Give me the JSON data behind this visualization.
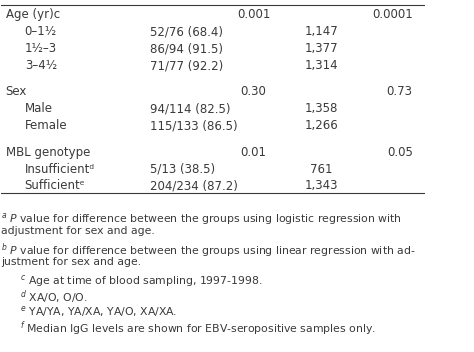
{
  "rows": [
    {
      "label": "Age (yr)ᴄ",
      "indent": 0,
      "col2": "",
      "col3": "0.001",
      "col4": "",
      "col5": "0.0001",
      "superscript_col1": "c"
    },
    {
      "label": "0–1½",
      "indent": 1,
      "col2": "52/76 (68.4)",
      "col3": "",
      "col4": "1,147",
      "col5": ""
    },
    {
      "label": "1½–3",
      "indent": 1,
      "col2": "86/94 (91.5)",
      "col3": "",
      "col4": "1,377",
      "col5": ""
    },
    {
      "label": "3–4½",
      "indent": 1,
      "col2": "71/77 (92.2)",
      "col3": "",
      "col4": "1,314",
      "col5": ""
    },
    {
      "label": "",
      "indent": 0,
      "col2": "",
      "col3": "",
      "col4": "",
      "col5": ""
    },
    {
      "label": "Sex",
      "indent": 0,
      "col2": "",
      "col3": "0.30",
      "col4": "",
      "col5": "0.73",
      "superscript_col1": ""
    },
    {
      "label": "Male",
      "indent": 1,
      "col2": "94/114 (82.5)",
      "col3": "",
      "col4": "1,358",
      "col5": ""
    },
    {
      "label": "Female",
      "indent": 1,
      "col2": "115/133 (86.5)",
      "col3": "",
      "col4": "1,266",
      "col5": ""
    },
    {
      "label": "",
      "indent": 0,
      "col2": "",
      "col3": "",
      "col4": "",
      "col5": ""
    },
    {
      "label": "MBL genotype",
      "indent": 0,
      "col2": "",
      "col3": "0.01",
      "col4": "",
      "col5": "0.05",
      "superscript_col1": ""
    },
    {
      "label": "Insufficientᵈ",
      "indent": 1,
      "col2": "5/13 (38.5)",
      "col3": "",
      "col4": "761",
      "col5": ""
    },
    {
      "label": "Sufficientᵉ",
      "indent": 1,
      "col2": "204/234 (87.2)",
      "col3": "",
      "col4": "1,343",
      "col5": ""
    }
  ],
  "footnotes": [
    "ᵃ P value for difference between the groups using logistic regression with adjustment for sex and age.",
    "ᵇ P value for difference between the groups using linear regression with adjustment for sex and age.",
    "ᶜ Age at time of blood sampling, 1997-1998.",
    "ᵈ XA/O, O/O.",
    "ᵉ YA/YA, YA/XA, YA/O, XA/XA.",
    "ᵍ Median IgG levels are shown for EBV-seropositive samples only."
  ],
  "font_size": 8.5,
  "footnote_font_size": 7.8,
  "text_color": "#3a3a3a",
  "bg_color": "#ffffff"
}
